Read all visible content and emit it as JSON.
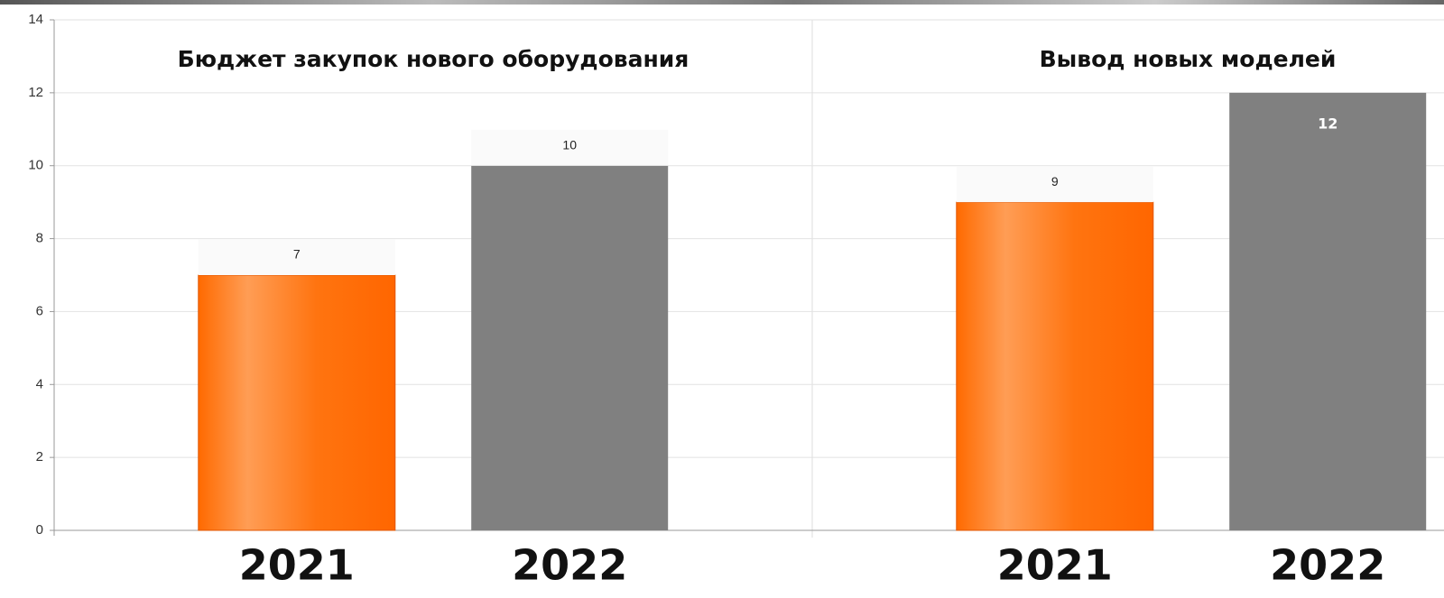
{
  "chart_data": [
    {
      "type": "bar",
      "title": "Бюджет закупок нового оборудования",
      "categories": [
        "2021",
        "2022"
      ],
      "values": [
        7,
        10
      ],
      "colors": [
        "#ff6600",
        "#808080"
      ],
      "ylim": [
        0,
        14
      ],
      "yticks": [
        0,
        2,
        4,
        6,
        8,
        10,
        12,
        14
      ],
      "grid": true
    },
    {
      "type": "bar",
      "title": "Вывод новых моделей",
      "categories": [
        "2021",
        "2022"
      ],
      "values": [
        9,
        12
      ],
      "colors": [
        "#ff6600",
        "#808080"
      ],
      "ylim": [
        0,
        14
      ],
      "grid": true
    }
  ]
}
